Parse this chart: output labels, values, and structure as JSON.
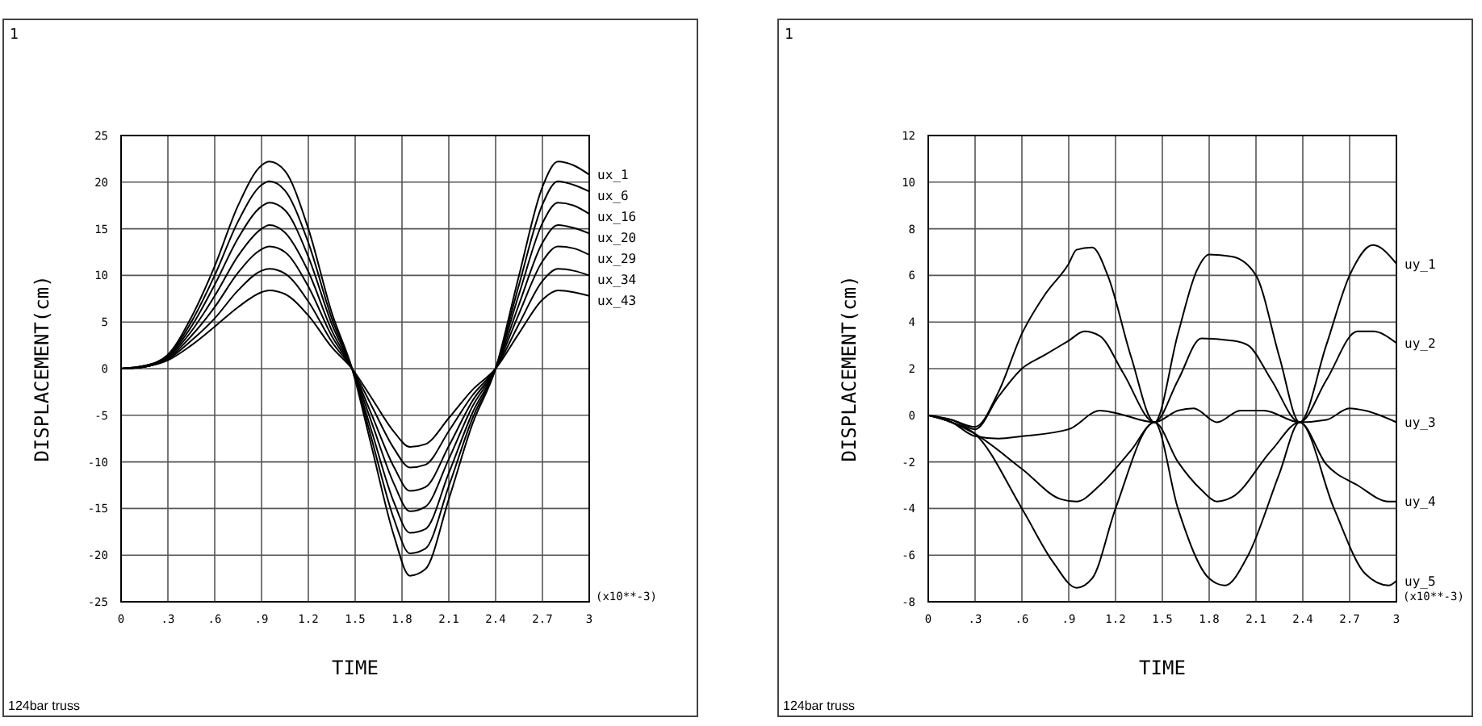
{
  "chart_data": [
    {
      "type": "line",
      "xlabel": "TIME",
      "ylabel": "DISPLACEMENT(cm)",
      "annotations": [
        "1",
        "(x10**-3)",
        "124bar truss"
      ],
      "xlim": [
        0,
        3
      ],
      "xticks": [
        0,
        {
          "value": 0.3,
          "label": ".3"
        },
        {
          "value": 0.6,
          "label": ".6"
        },
        {
          "value": 0.9,
          "label": ".9"
        },
        1.2,
        1.5,
        1.8,
        2.1,
        2.4,
        2.7,
        3
      ],
      "ylim": [
        -25,
        25
      ],
      "yticks": [
        -25,
        -20,
        -15,
        -10,
        -5,
        0,
        5,
        10,
        15,
        20,
        25
      ],
      "grid": true,
      "legend": false,
      "marker": "none",
      "line_style": "solid",
      "x": [
        0,
        0.15,
        0.3,
        0.45,
        0.6,
        0.75,
        0.9,
        0.95,
        1.05,
        1.2,
        1.35,
        1.48,
        1.6,
        1.75,
        1.85,
        1.95,
        2.1,
        2.25,
        2.4,
        2.55,
        2.7,
        2.8,
        2.9,
        3
      ],
      "series": [
        {
          "name": "ux_1",
          "color": "#000000",
          "values": [
            0,
            0.3,
            1.5,
            5.5,
            11,
            17.5,
            21.8,
            22.2,
            21.2,
            15,
            6,
            0,
            -8,
            -18,
            -22.2,
            -21.5,
            -14,
            -6,
            0,
            10,
            19.5,
            22.2,
            21.8,
            20.8
          ]
        },
        {
          "name": "ux_6",
          "color": "#000000",
          "values": [
            0,
            0.3,
            1.4,
            5,
            10,
            15.8,
            19.7,
            20.1,
            19.1,
            13.5,
            5.4,
            0,
            -7.2,
            -16.2,
            -19.8,
            -19.3,
            -12.6,
            -5.4,
            0,
            9,
            17.6,
            20.1,
            19.7,
            19
          ]
        },
        {
          "name": "ux_16",
          "color": "#000000",
          "values": [
            0,
            0.3,
            1.3,
            4.5,
            9,
            14,
            17.4,
            17.8,
            17,
            12,
            4.8,
            0,
            -6.4,
            -14.4,
            -17.6,
            -17.2,
            -11.2,
            -4.8,
            0,
            8,
            15.6,
            17.8,
            17.5,
            16.6
          ]
        },
        {
          "name": "ux_20",
          "color": "#000000",
          "values": [
            0,
            0.2,
            1.2,
            4,
            7.8,
            12.1,
            15,
            15.4,
            14.6,
            10.4,
            4.1,
            0,
            -5.5,
            -12.4,
            -15.3,
            -14.8,
            -9.7,
            -4.1,
            0,
            6.9,
            13.5,
            15.4,
            15.1,
            14.5
          ]
        },
        {
          "name": "ux_29",
          "color": "#000000",
          "values": [
            0,
            0.2,
            1.1,
            3.5,
            6.6,
            10.3,
            12.8,
            13.1,
            12.5,
            8.8,
            3.5,
            0,
            -4.7,
            -10.6,
            -13.1,
            -12.7,
            -8.3,
            -3.5,
            0,
            5.9,
            11.5,
            13.1,
            12.9,
            12.2
          ]
        },
        {
          "name": "ux_34",
          "color": "#000000",
          "values": [
            0,
            0.2,
            1,
            3,
            5.4,
            8.4,
            10.5,
            10.7,
            10.2,
            7.2,
            2.9,
            0,
            -3.8,
            -8.6,
            -10.6,
            -10.3,
            -6.7,
            -2.9,
            0,
            4.8,
            9.4,
            10.7,
            10.5,
            10
          ]
        },
        {
          "name": "ux_43",
          "color": "#000000",
          "values": [
            0,
            0.2,
            0.9,
            2.5,
            4.5,
            6.6,
            8.2,
            8.4,
            8,
            5.7,
            2.3,
            0,
            -3,
            -6.8,
            -8.4,
            -8.1,
            -5.3,
            -2.3,
            0,
            3.8,
            7.4,
            8.4,
            8.2,
            7.8
          ]
        }
      ]
    },
    {
      "type": "line",
      "xlabel": "TIME",
      "ylabel": "DISPLACEMENT(cm)",
      "annotations": [
        "1",
        "(x10**-3)",
        "124bar truss"
      ],
      "xlim": [
        0,
        3
      ],
      "xticks": [
        0,
        {
          "value": 0.3,
          "label": ".3"
        },
        {
          "value": 0.6,
          "label": ".6"
        },
        {
          "value": 0.9,
          "label": ".9"
        },
        1.2,
        1.5,
        1.8,
        2.1,
        2.4,
        2.7,
        3
      ],
      "ylim": [
        -8,
        12
      ],
      "yticks": [
        -8,
        -6,
        -4,
        -2,
        0,
        2,
        4,
        6,
        8,
        10,
        12
      ],
      "grid": true,
      "legend": false,
      "marker": "none",
      "line_style": "solid",
      "series": [
        {
          "name": "uy_1",
          "color": "#000000",
          "x": [
            0,
            0.15,
            0.3,
            0.45,
            0.6,
            0.75,
            0.9,
            0.95,
            1.05,
            1.15,
            1.3,
            1.45,
            1.6,
            1.72,
            1.8,
            1.95,
            2.1,
            2.25,
            2.38,
            2.55,
            2.7,
            2.85,
            3
          ],
          "values": [
            0,
            -0.2,
            -0.5,
            1,
            3.5,
            5.2,
            6.5,
            7.1,
            7.2,
            6,
            2.5,
            -0.3,
            3.5,
            6.2,
            6.9,
            6.8,
            6,
            2.5,
            -0.3,
            3,
            6,
            7.3,
            6.5
          ]
        },
        {
          "name": "uy_2",
          "color": "#000000",
          "x": [
            0,
            0.15,
            0.3,
            0.45,
            0.6,
            0.75,
            0.9,
            1,
            1.1,
            1.25,
            1.45,
            1.6,
            1.75,
            1.95,
            2.05,
            2.2,
            2.38,
            2.55,
            2.75,
            2.85,
            3
          ],
          "values": [
            0,
            -0.2,
            -0.6,
            0.8,
            2,
            2.6,
            3.2,
            3.6,
            3.4,
            1.8,
            -0.3,
            1.5,
            3.3,
            3.2,
            3,
            1.5,
            -0.3,
            1.5,
            3.6,
            3.6,
            3.1
          ]
        },
        {
          "name": "uy_3",
          "color": "#000000",
          "x": [
            0,
            0.15,
            0.3,
            0.45,
            0.6,
            0.9,
            1.1,
            1.2,
            1.45,
            1.6,
            1.7,
            1.85,
            2,
            2.15,
            2.38,
            2.55,
            2.7,
            2.8,
            3
          ],
          "values": [
            0,
            -0.3,
            -0.9,
            -1,
            -0.9,
            -0.6,
            0.2,
            0.1,
            -0.3,
            0.2,
            0.3,
            -0.3,
            0.2,
            0.2,
            -0.3,
            -0.2,
            0.3,
            0.2,
            -0.3
          ]
        },
        {
          "name": "uy_4",
          "color": "#000000",
          "x": [
            0,
            0.15,
            0.3,
            0.6,
            0.85,
            0.95,
            1.1,
            1.3,
            1.45,
            1.6,
            1.75,
            1.85,
            1.95,
            2.2,
            2.38,
            2.55,
            2.75,
            2.95,
            3
          ],
          "values": [
            0,
            -0.3,
            -0.8,
            -2.3,
            -3.6,
            -3.7,
            -3,
            -1.5,
            -0.3,
            -2,
            -3.2,
            -3.7,
            -3.5,
            -1.5,
            -0.3,
            -2.1,
            -3,
            -3.7,
            -3.7
          ]
        },
        {
          "name": "uy_5",
          "color": "#000000",
          "x": [
            0,
            0.15,
            0.3,
            0.6,
            0.8,
            0.95,
            1.05,
            1.2,
            1.45,
            1.6,
            1.8,
            1.9,
            2.05,
            2.25,
            2.38,
            2.6,
            2.8,
            2.95,
            3
          ],
          "values": [
            0,
            -0.3,
            -0.8,
            -4,
            -6.3,
            -7.4,
            -7,
            -4,
            -0.3,
            -4,
            -7,
            -7.3,
            -6,
            -2.5,
            -0.3,
            -4,
            -6.8,
            -7.3,
            -7.1
          ]
        }
      ]
    }
  ]
}
